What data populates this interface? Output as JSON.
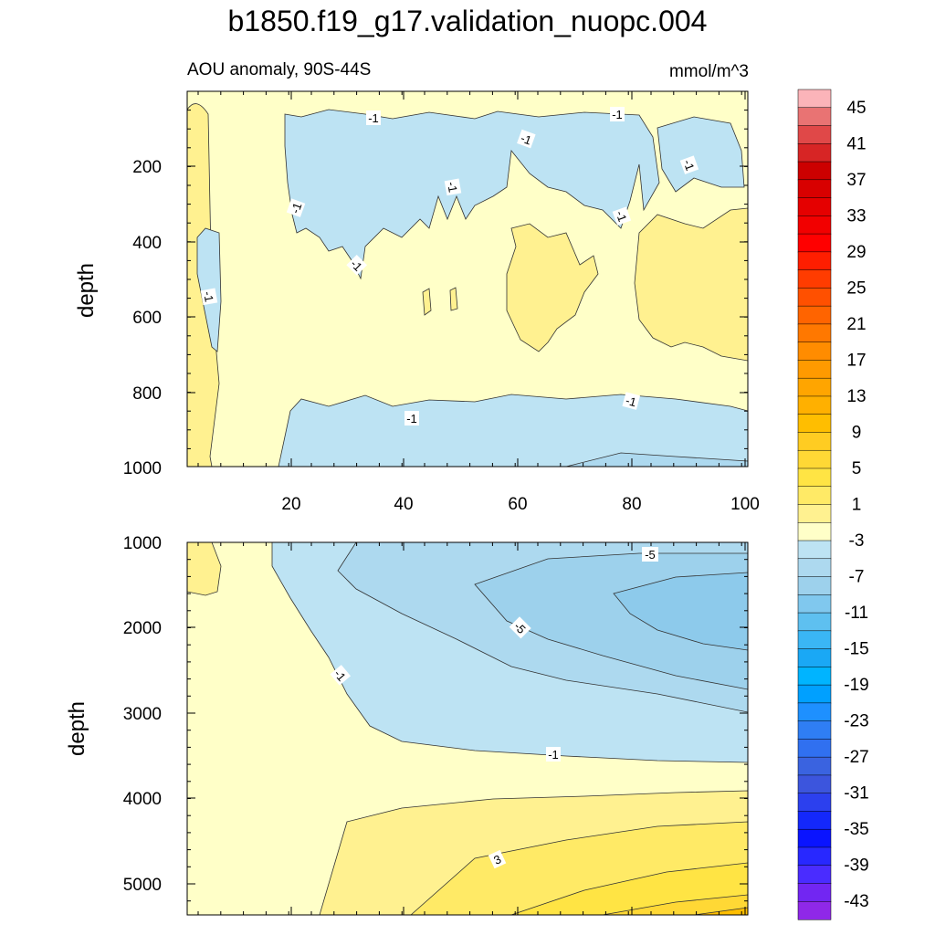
{
  "title": "b1850.f19_g17.validation_nuopc.004",
  "subtitle_left": "AOU anomaly, 90S-44S",
  "subtitle_right": "mmol/m^3",
  "chart_data": [
    {
      "type": "contour",
      "panel": "upper",
      "ylabel": "depth",
      "xlabel": "",
      "x_range": [
        0,
        101
      ],
      "y_range": [
        0,
        1000
      ],
      "y_inverted": true,
      "x_ticks": [
        "20",
        "40",
        "60",
        "80",
        "100"
      ],
      "y_ticks": [
        "200",
        "400",
        "600",
        "800",
        "1000"
      ],
      "contour_labels": [
        "-1",
        "-1",
        "-1",
        "-1",
        "-1",
        "-1",
        "-1",
        "-1",
        "-1",
        "-1",
        "-1",
        "-1"
      ]
    },
    {
      "type": "contour",
      "panel": "lower",
      "ylabel": "depth",
      "xlabel": "",
      "x_range": [
        0,
        101
      ],
      "y_range": [
        1000,
        5400
      ],
      "y_inverted": true,
      "y_ticks": [
        "1000",
        "2000",
        "3000",
        "4000",
        "5000"
      ],
      "contour_labels": [
        "-5",
        "-5",
        "-1",
        "-1",
        "3"
      ]
    }
  ],
  "colorbar": {
    "labels": [
      "45",
      "41",
      "37",
      "33",
      "29",
      "25",
      "21",
      "17",
      "13",
      "9",
      "5",
      "1",
      "-3",
      "-7",
      "-11",
      "-15",
      "-19",
      "-23",
      "-27",
      "-31",
      "-35",
      "-39",
      "-43"
    ],
    "colors": [
      "#fbb4b9",
      "#e97373",
      "#e04848",
      "#d72525",
      "#cc0000",
      "#d80000",
      "#e50000",
      "#f20000",
      "#ff0000",
      "#ff1e00",
      "#ff3c00",
      "#ff5000",
      "#ff6400",
      "#ff7800",
      "#ff8c00",
      "#ff9a00",
      "#ffa500",
      "#ffb000",
      "#ffbe00",
      "#ffcc22",
      "#ffd835",
      "#ffe444",
      "#ffea66",
      "#fff190",
      "#ffffc8",
      "#bde3f3",
      "#add9ef",
      "#9dd1ec",
      "#80c8ee",
      "#5ec0f0",
      "#3ab6f5",
      "#1aa8f5",
      "#00b4ff",
      "#00a0ff",
      "#1e90ff",
      "#2f7ef4",
      "#3070f0",
      "#3a63e0",
      "#3c55dd",
      "#2c40ee",
      "#1428fb",
      "#0a14ff",
      "#2828ff",
      "#4a2cff",
      "#7226f2",
      "#8f28e8"
    ]
  }
}
